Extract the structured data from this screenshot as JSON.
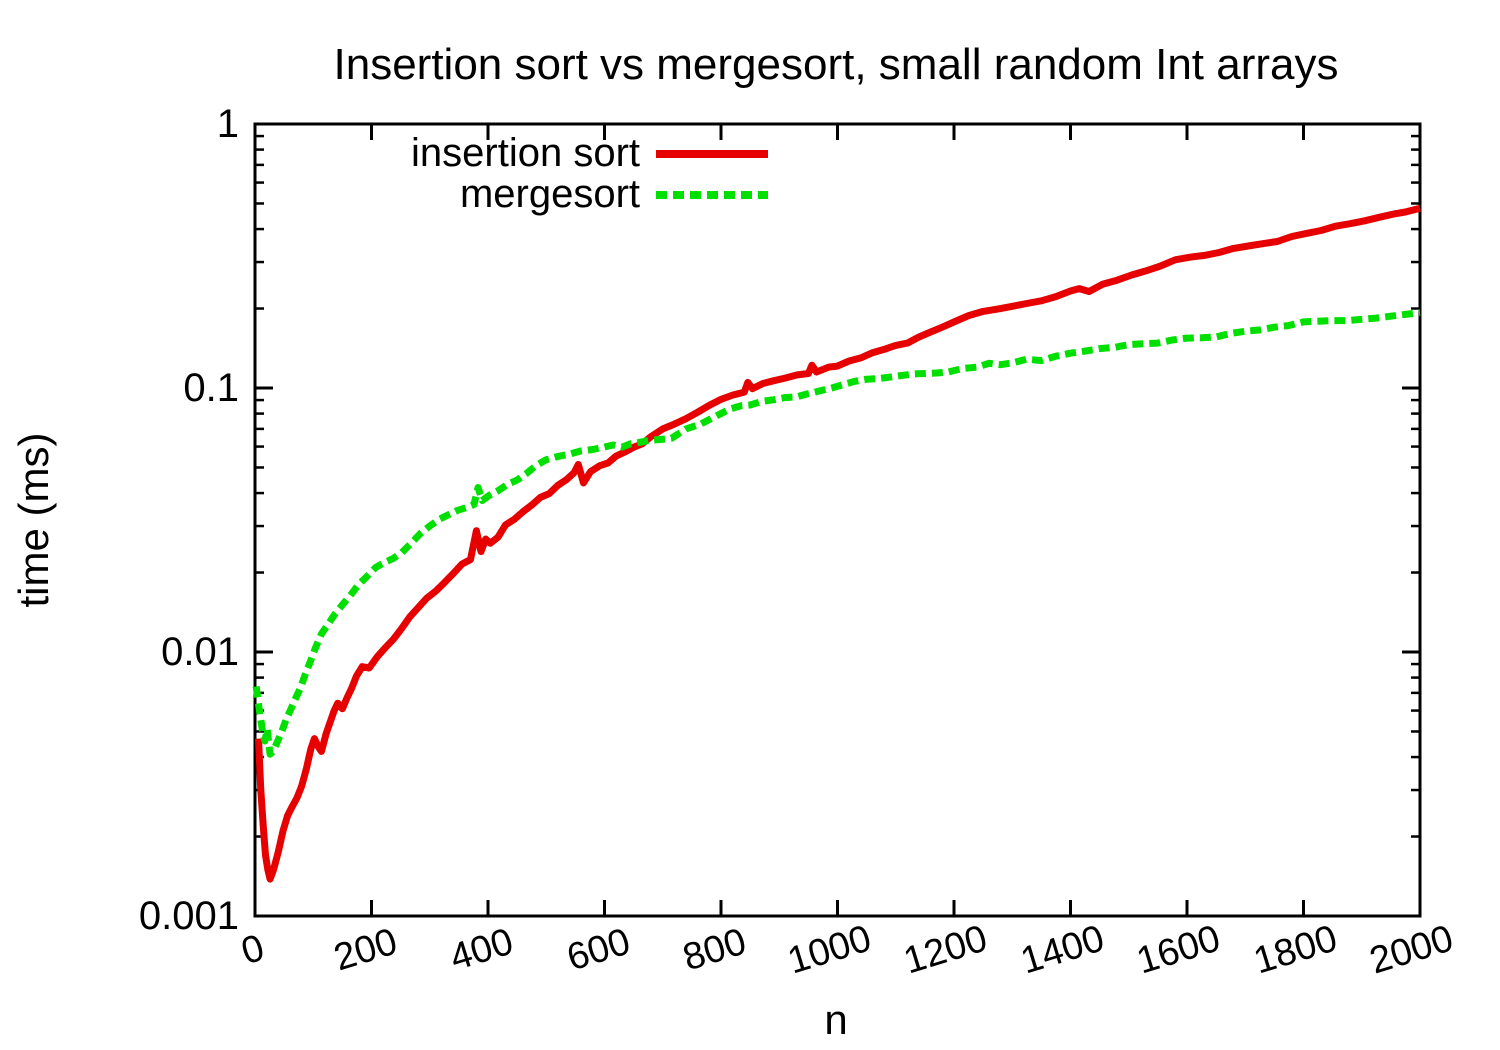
{
  "chart_data": {
    "type": "line",
    "title": "Insertion sort vs mergesort, small random Int arrays",
    "xlabel": "n",
    "ylabel": "time (ms)",
    "x_range": [
      0,
      2000
    ],
    "y_range": [
      0.001,
      1
    ],
    "y_scale": "log",
    "grid": false,
    "legend_position": "inside-top-left",
    "x_ticks": [
      "0",
      "200",
      "400",
      "600",
      "800",
      "1000",
      "1200",
      "1400",
      "1600",
      "1800",
      "2000"
    ],
    "y_ticks": [
      {
        "value": 1,
        "label": "1"
      },
      {
        "value": 0.1,
        "label": "0.1"
      },
      {
        "value": 0.01,
        "label": "0.01"
      },
      {
        "value": 0.001,
        "label": "0.001"
      }
    ],
    "series": [
      {
        "name": "insertion sort",
        "color": "#e60000",
        "dash": "solid",
        "points": [
          [
            6,
            0.0047
          ],
          [
            10,
            0.003
          ],
          [
            14,
            0.0022
          ],
          [
            18,
            0.0017
          ],
          [
            22,
            0.0015
          ],
          [
            26,
            0.00138
          ],
          [
            32,
            0.0015
          ],
          [
            40,
            0.00175
          ],
          [
            48,
            0.0021
          ],
          [
            56,
            0.0024
          ],
          [
            64,
            0.0026
          ],
          [
            72,
            0.0028
          ],
          [
            80,
            0.0031
          ],
          [
            88,
            0.0036
          ],
          [
            96,
            0.0043
          ],
          [
            102,
            0.0047
          ],
          [
            108,
            0.0044
          ],
          [
            114,
            0.0042
          ],
          [
            122,
            0.0049
          ],
          [
            130,
            0.0055
          ],
          [
            136,
            0.006
          ],
          [
            142,
            0.0064
          ],
          [
            150,
            0.0061
          ],
          [
            158,
            0.0067
          ],
          [
            166,
            0.0073
          ],
          [
            174,
            0.0081
          ],
          [
            184,
            0.0088
          ],
          [
            196,
            0.0087
          ],
          [
            210,
            0.0096
          ],
          [
            224,
            0.0104
          ],
          [
            238,
            0.0112
          ],
          [
            252,
            0.0123
          ],
          [
            266,
            0.0136
          ],
          [
            280,
            0.0147
          ],
          [
            295,
            0.016
          ],
          [
            310,
            0.017
          ],
          [
            325,
            0.0183
          ],
          [
            340,
            0.0198
          ],
          [
            355,
            0.0215
          ],
          [
            370,
            0.0224
          ],
          [
            380,
            0.0288
          ],
          [
            388,
            0.024
          ],
          [
            396,
            0.0268
          ],
          [
            404,
            0.0258
          ],
          [
            417,
            0.0272
          ],
          [
            430,
            0.0303
          ],
          [
            445,
            0.0318
          ],
          [
            460,
            0.034
          ],
          [
            475,
            0.036
          ],
          [
            490,
            0.0385
          ],
          [
            505,
            0.0398
          ],
          [
            520,
            0.0428
          ],
          [
            535,
            0.045
          ],
          [
            548,
            0.0478
          ],
          [
            555,
            0.0513
          ],
          [
            564,
            0.0437
          ],
          [
            576,
            0.0482
          ],
          [
            592,
            0.0508
          ],
          [
            606,
            0.052
          ],
          [
            620,
            0.0552
          ],
          [
            635,
            0.0572
          ],
          [
            650,
            0.0596
          ],
          [
            665,
            0.0615
          ],
          [
            680,
            0.0655
          ],
          [
            700,
            0.07
          ],
          [
            720,
            0.073
          ],
          [
            740,
            0.0765
          ],
          [
            760,
            0.081
          ],
          [
            780,
            0.086
          ],
          [
            800,
            0.0905
          ],
          [
            820,
            0.094
          ],
          [
            840,
            0.0965
          ],
          [
            846,
            0.105
          ],
          [
            854,
            0.0995
          ],
          [
            872,
            0.104
          ],
          [
            890,
            0.1065
          ],
          [
            910,
            0.109
          ],
          [
            930,
            0.112
          ],
          [
            950,
            0.1135
          ],
          [
            956,
            0.122
          ],
          [
            964,
            0.115
          ],
          [
            985,
            0.12
          ],
          [
            1000,
            0.121
          ],
          [
            1020,
            0.1265
          ],
          [
            1040,
            0.13
          ],
          [
            1060,
            0.136
          ],
          [
            1080,
            0.14
          ],
          [
            1100,
            0.145
          ],
          [
            1120,
            0.148
          ],
          [
            1140,
            0.156
          ],
          [
            1160,
            0.163
          ],
          [
            1180,
            0.17
          ],
          [
            1200,
            0.178
          ],
          [
            1225,
            0.188
          ],
          [
            1250,
            0.195
          ],
          [
            1275,
            0.199
          ],
          [
            1300,
            0.204
          ],
          [
            1325,
            0.209
          ],
          [
            1350,
            0.214
          ],
          [
            1375,
            0.222
          ],
          [
            1400,
            0.233
          ],
          [
            1415,
            0.238
          ],
          [
            1432,
            0.232
          ],
          [
            1455,
            0.247
          ],
          [
            1480,
            0.256
          ],
          [
            1505,
            0.268
          ],
          [
            1530,
            0.278
          ],
          [
            1555,
            0.29
          ],
          [
            1580,
            0.306
          ],
          [
            1605,
            0.313
          ],
          [
            1630,
            0.318
          ],
          [
            1655,
            0.326
          ],
          [
            1680,
            0.338
          ],
          [
            1705,
            0.345
          ],
          [
            1730,
            0.352
          ],
          [
            1755,
            0.359
          ],
          [
            1780,
            0.375
          ],
          [
            1805,
            0.385
          ],
          [
            1830,
            0.395
          ],
          [
            1855,
            0.41
          ],
          [
            1880,
            0.419
          ],
          [
            1905,
            0.43
          ],
          [
            1930,
            0.443
          ],
          [
            1955,
            0.456
          ],
          [
            1975,
            0.464
          ],
          [
            2000,
            0.48
          ]
        ]
      },
      {
        "name": "mergesort",
        "color": "#00e000",
        "dash": "dashed",
        "points": [
          [
            2,
            0.0074
          ],
          [
            8,
            0.0059
          ],
          [
            13,
            0.005
          ],
          [
            17,
            0.0046
          ],
          [
            21,
            0.0051
          ],
          [
            26,
            0.0041
          ],
          [
            31,
            0.0042
          ],
          [
            37,
            0.0045
          ],
          [
            46,
            0.005
          ],
          [
            54,
            0.0056
          ],
          [
            62,
            0.0061
          ],
          [
            70,
            0.0067
          ],
          [
            78,
            0.0073
          ],
          [
            86,
            0.0082
          ],
          [
            95,
            0.0092
          ],
          [
            104,
            0.0104
          ],
          [
            114,
            0.0117
          ],
          [
            126,
            0.0128
          ],
          [
            138,
            0.014
          ],
          [
            150,
            0.0151
          ],
          [
            163,
            0.0163
          ],
          [
            177,
            0.0179
          ],
          [
            192,
            0.0193
          ],
          [
            207,
            0.0209
          ],
          [
            222,
            0.0218
          ],
          [
            237,
            0.0226
          ],
          [
            252,
            0.0238
          ],
          [
            268,
            0.0258
          ],
          [
            284,
            0.0281
          ],
          [
            300,
            0.03
          ],
          [
            316,
            0.0318
          ],
          [
            332,
            0.0331
          ],
          [
            348,
            0.0344
          ],
          [
            364,
            0.0353
          ],
          [
            376,
            0.0362
          ],
          [
            383,
            0.042
          ],
          [
            390,
            0.0375
          ],
          [
            402,
            0.0392
          ],
          [
            418,
            0.0409
          ],
          [
            434,
            0.0432
          ],
          [
            450,
            0.0448
          ],
          [
            466,
            0.0474
          ],
          [
            482,
            0.0508
          ],
          [
            500,
            0.0535
          ],
          [
            520,
            0.055
          ],
          [
            540,
            0.0562
          ],
          [
            560,
            0.0578
          ],
          [
            580,
            0.0585
          ],
          [
            600,
            0.0598
          ],
          [
            615,
            0.0608
          ],
          [
            630,
            0.0597
          ],
          [
            645,
            0.0615
          ],
          [
            660,
            0.0622
          ],
          [
            675,
            0.0632
          ],
          [
            695,
            0.0638
          ],
          [
            715,
            0.0645
          ],
          [
            740,
            0.07
          ],
          [
            765,
            0.073
          ],
          [
            790,
            0.078
          ],
          [
            815,
            0.0832
          ],
          [
            835,
            0.0857
          ],
          [
            850,
            0.0862
          ],
          [
            870,
            0.089
          ],
          [
            890,
            0.0902
          ],
          [
            910,
            0.092
          ],
          [
            930,
            0.0925
          ],
          [
            950,
            0.0952
          ],
          [
            970,
            0.0975
          ],
          [
            990,
            0.1
          ],
          [
            1010,
            0.103
          ],
          [
            1030,
            0.106
          ],
          [
            1050,
            0.108
          ],
          [
            1070,
            0.1085
          ],
          [
            1090,
            0.11
          ],
          [
            1110,
            0.1115
          ],
          [
            1130,
            0.113
          ],
          [
            1150,
            0.1135
          ],
          [
            1170,
            0.114
          ],
          [
            1190,
            0.115
          ],
          [
            1215,
            0.1185
          ],
          [
            1240,
            0.12
          ],
          [
            1260,
            0.124
          ],
          [
            1280,
            0.1225
          ],
          [
            1300,
            0.1245
          ],
          [
            1325,
            0.1285
          ],
          [
            1350,
            0.127
          ],
          [
            1375,
            0.132
          ],
          [
            1400,
            0.1355
          ],
          [
            1425,
            0.138
          ],
          [
            1450,
            0.141
          ],
          [
            1475,
            0.1425
          ],
          [
            1500,
            0.146
          ],
          [
            1525,
            0.147
          ],
          [
            1550,
            0.148
          ],
          [
            1575,
            0.152
          ],
          [
            1600,
            0.1545
          ],
          [
            1625,
            0.155
          ],
          [
            1650,
            0.156
          ],
          [
            1675,
            0.161
          ],
          [
            1700,
            0.164
          ],
          [
            1725,
            0.166
          ],
          [
            1750,
            0.17
          ],
          [
            1775,
            0.1725
          ],
          [
            1800,
            0.178
          ],
          [
            1825,
            0.179
          ],
          [
            1850,
            0.18
          ],
          [
            1875,
            0.18
          ],
          [
            1900,
            0.182
          ],
          [
            1925,
            0.184
          ],
          [
            1950,
            0.187
          ],
          [
            1975,
            0.19
          ],
          [
            2000,
            0.193
          ]
        ]
      }
    ]
  },
  "colors": {
    "background": "#ffffff",
    "axis": "#000000",
    "insertion_sort": "#e60000",
    "mergesort": "#00e000"
  }
}
